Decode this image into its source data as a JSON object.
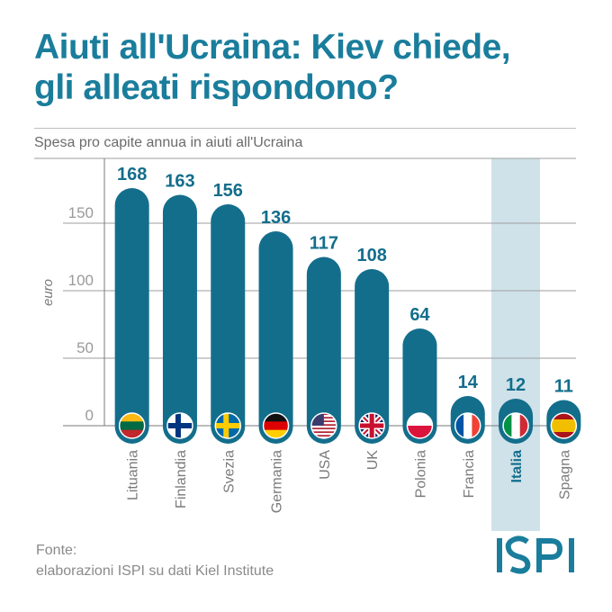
{
  "title_line1": "Aiuti all'Ucraina: Kiev chiede,",
  "title_line2": "gli alleati rispondono?",
  "subtitle": "Spesa pro capite annua in aiuti all'Ucraina",
  "source_line1": "Fonte:",
  "source_line2": "elaborazioni ISPI su dati Kiel Institute",
  "logo_text": "ISPI",
  "colors": {
    "bar": "#136e8c",
    "title": "#1a7d9c",
    "highlight": "#cfe2e9",
    "grid": "#9e9e9e"
  },
  "chart_data": {
    "type": "bar",
    "ylabel": "euro",
    "ylim": [
      0,
      180
    ],
    "yticks": [
      0,
      50,
      100,
      150
    ],
    "grid": true,
    "highlighted_category": "Italia",
    "categories": [
      "Lituania",
      "Finlandia",
      "Svezia",
      "Germania",
      "USA",
      "UK",
      "Polonia",
      "Francia",
      "Italia",
      "Spagna"
    ],
    "values": [
      168,
      163,
      156,
      136,
      117,
      108,
      64,
      14,
      12,
      11
    ],
    "flags": [
      "lithuania-flag",
      "finland-flag",
      "sweden-flag",
      "germany-flag",
      "usa-flag",
      "uk-flag",
      "poland-flag",
      "france-flag",
      "italy-flag",
      "spain-flag"
    ]
  }
}
